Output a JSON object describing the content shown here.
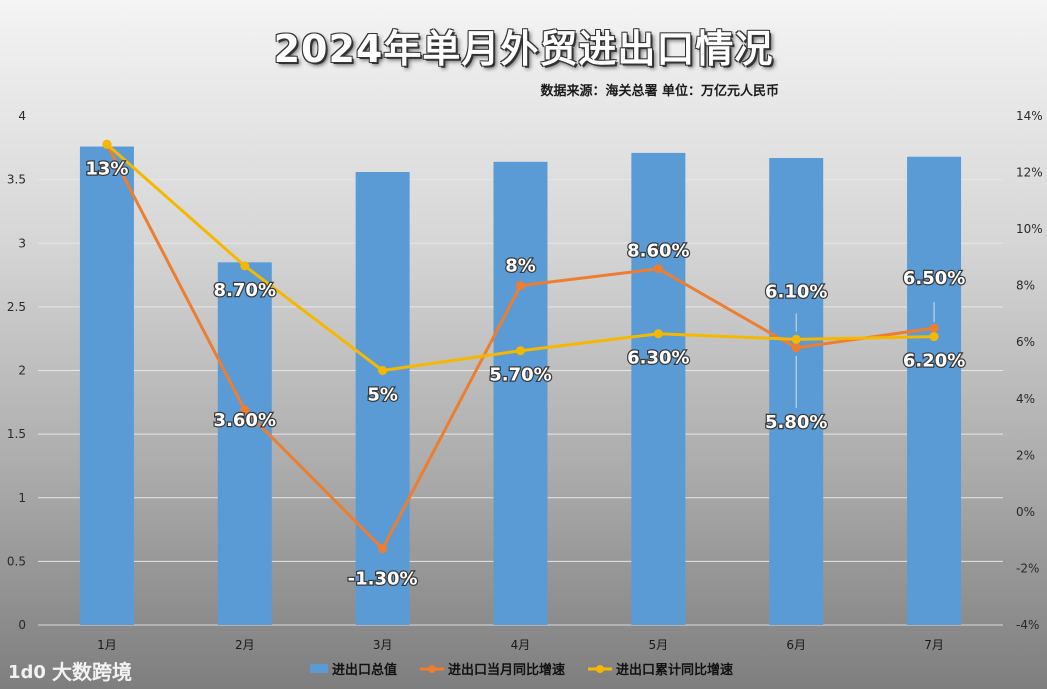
{
  "title": "2024年单月外贸进出口情况",
  "subtitle": "数据来源：海关总署 单位：万亿元人民币",
  "watermark": {
    "text": "大数跨境",
    "logo": "1d0"
  },
  "chart_data": {
    "type": "bar+line",
    "categories": [
      "1月",
      "2月",
      "3月",
      "4月",
      "5月",
      "6月",
      "7月"
    ],
    "bar_series": {
      "name": "进出口总值",
      "values": [
        3.76,
        2.85,
        3.56,
        3.64,
        3.71,
        3.67,
        3.68
      ],
      "axis": "left",
      "color": "#5b9bd5"
    },
    "line_series": [
      {
        "name": "进出口当月同比增速",
        "values": [
          13,
          3.6,
          -1.3,
          8,
          8.6,
          5.8,
          6.5
        ],
        "labels": [
          "13%",
          "3.60%",
          "-1.30%",
          "8%",
          "8.60%",
          "5.80%",
          "6.50%"
        ],
        "axis": "right",
        "color": "#ed7d31"
      },
      {
        "name": "进出口累计同比增速",
        "values": [
          13,
          8.7,
          5,
          5.7,
          6.3,
          6.1,
          6.2
        ],
        "labels": [
          "",
          "8.70%",
          "5%",
          "5.70%",
          "6.30%",
          "6.10%",
          "6.20%"
        ],
        "axis": "right",
        "color": "#f5b800"
      }
    ],
    "y_left": {
      "min": 0,
      "max": 4,
      "step": 0.5,
      "ticks": [
        "0",
        "0.5",
        "1",
        "1.5",
        "2",
        "2.5",
        "3",
        "3.5",
        "4"
      ]
    },
    "y_right": {
      "min": -4,
      "max": 14,
      "step": 2,
      "ticks": [
        "-4%",
        "-2%",
        "0%",
        "2%",
        "4%",
        "6%",
        "8%",
        "10%",
        "12%",
        "14%"
      ]
    },
    "grid": true,
    "legend": "bottom-center"
  }
}
